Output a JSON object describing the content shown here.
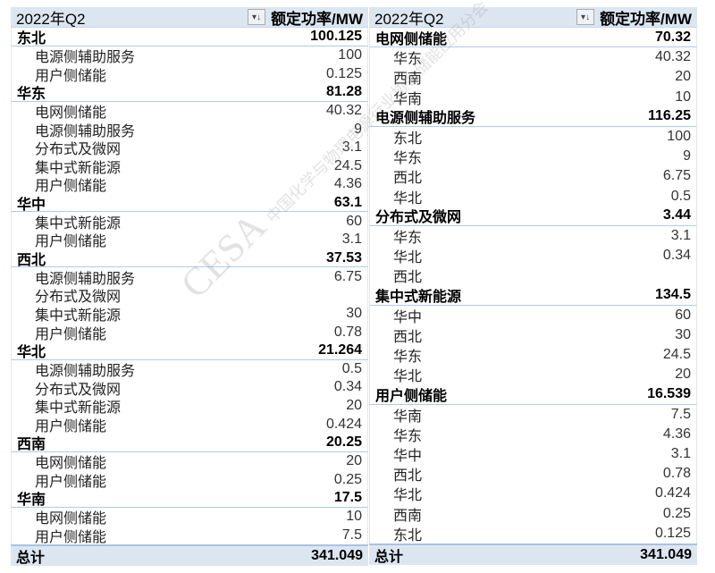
{
  "left": {
    "header": {
      "title": "2022年Q2",
      "filter_icon": "sort-filter-icon",
      "measure": "额定功率/MW"
    },
    "groups": [
      {
        "name": "东北",
        "value": "100.125",
        "children": [
          {
            "name": "电源侧辅助服务",
            "value": "100"
          },
          {
            "name": "用户侧储能",
            "value": "0.125"
          }
        ]
      },
      {
        "name": "华东",
        "value": "81.28",
        "children": [
          {
            "name": "电网侧储能",
            "value": "40.32"
          },
          {
            "name": "电源侧辅助服务",
            "value": "9"
          },
          {
            "name": "分布式及微网",
            "value": "3.1"
          },
          {
            "name": "集中式新能源",
            "value": "24.5"
          },
          {
            "name": "用户侧储能",
            "value": "4.36"
          }
        ]
      },
      {
        "name": "华中",
        "value": "63.1",
        "children": [
          {
            "name": "集中式新能源",
            "value": "60"
          },
          {
            "name": "用户侧储能",
            "value": "3.1"
          }
        ]
      },
      {
        "name": "西北",
        "value": "37.53",
        "children": [
          {
            "name": "电源侧辅助服务",
            "value": "6.75"
          },
          {
            "name": "分布式及微网",
            "value": ""
          },
          {
            "name": "集中式新能源",
            "value": "30"
          },
          {
            "name": "用户侧储能",
            "value": "0.78"
          }
        ]
      },
      {
        "name": "华北",
        "value": "21.264",
        "children": [
          {
            "name": "电源侧辅助服务",
            "value": "0.5"
          },
          {
            "name": "分布式及微网",
            "value": "0.34"
          },
          {
            "name": "集中式新能源",
            "value": "20"
          },
          {
            "name": "用户侧储能",
            "value": "0.424"
          }
        ]
      },
      {
        "name": "西南",
        "value": "20.25",
        "children": [
          {
            "name": "电网侧储能",
            "value": "20"
          },
          {
            "name": "用户侧储能",
            "value": "0.25"
          }
        ]
      },
      {
        "name": "华南",
        "value": "17.5",
        "children": [
          {
            "name": "电网侧储能",
            "value": "10"
          },
          {
            "name": "用户侧储能",
            "value": "7.5"
          }
        ]
      }
    ],
    "total": {
      "label": "总计",
      "value": "341.049"
    }
  },
  "right": {
    "header": {
      "title": "2022年Q2",
      "filter_icon": "sort-filter-icon",
      "measure": "额定功率/MW"
    },
    "groups": [
      {
        "name": "电网侧储能",
        "value": "70.32",
        "children": [
          {
            "name": "华东",
            "value": "40.32"
          },
          {
            "name": "西南",
            "value": "20"
          },
          {
            "name": "华南",
            "value": "10"
          }
        ]
      },
      {
        "name": "电源侧辅助服务",
        "value": "116.25",
        "children": [
          {
            "name": "东北",
            "value": "100"
          },
          {
            "name": "华东",
            "value": "9"
          },
          {
            "name": "西北",
            "value": "6.75"
          },
          {
            "name": "华北",
            "value": "0.5"
          }
        ]
      },
      {
        "name": "分布式及微网",
        "value": "3.44",
        "children": [
          {
            "name": "华东",
            "value": "3.1"
          },
          {
            "name": "华北",
            "value": "0.34"
          },
          {
            "name": "西北",
            "value": ""
          }
        ]
      },
      {
        "name": "集中式新能源",
        "value": "134.5",
        "children": [
          {
            "name": "华中",
            "value": "60"
          },
          {
            "name": "西北",
            "value": "30"
          },
          {
            "name": "华东",
            "value": "24.5"
          },
          {
            "name": "华北",
            "value": "20"
          }
        ]
      },
      {
        "name": "用户侧储能",
        "value": "16.539",
        "children": [
          {
            "name": "华南",
            "value": "7.5"
          },
          {
            "name": "华东",
            "value": "4.36"
          },
          {
            "name": "华中",
            "value": "3.1"
          },
          {
            "name": "西北",
            "value": "0.78"
          },
          {
            "name": "华北",
            "value": "0.424"
          },
          {
            "name": "西南",
            "value": "0.25"
          },
          {
            "name": "东北",
            "value": "0.125"
          }
        ]
      }
    ],
    "total": {
      "label": "总计",
      "value": "341.049"
    }
  },
  "watermark": {
    "logo": "CESA",
    "text": "中国化学与物理电源行业协会储能应用分会"
  },
  "colors": {
    "header_bg": "#dce6f1",
    "group_border": "#b4c9e4"
  }
}
